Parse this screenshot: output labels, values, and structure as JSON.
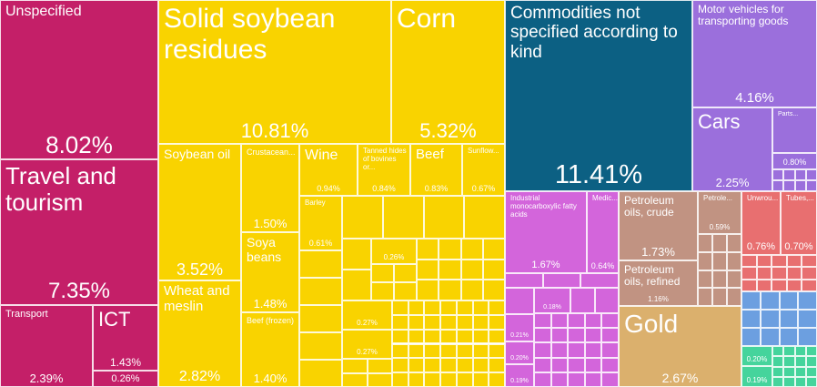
{
  "chart_data": {
    "type": "treemap",
    "unit": "% share",
    "group_colors": {
      "services": "#c41f68",
      "vegetable": "#f9d300",
      "unspecified": "#0c6083",
      "vehicles": "#9b6fdc",
      "chemicals": "#d365db",
      "minerals": "#c19382",
      "precious": "#dbb06d",
      "metals": "#e86f70",
      "blue": "#6c9fe0",
      "green": "#45d49c"
    },
    "items": [
      {
        "label": "Unspecified",
        "value": "8.02%",
        "group": "services"
      },
      {
        "label": "Travel and tourism",
        "value": "7.35%",
        "group": "services"
      },
      {
        "label": "Transport",
        "value": "2.39%",
        "group": "services"
      },
      {
        "label": "ICT",
        "value": "1.43%",
        "group": "services"
      },
      {
        "label": "",
        "value": "0.26%",
        "group": "services"
      },
      {
        "label": "Solid soybean residues",
        "value": "10.81%",
        "group": "vegetable"
      },
      {
        "label": "Corn",
        "value": "5.32%",
        "group": "vegetable"
      },
      {
        "label": "Soybean oil",
        "value": "3.52%",
        "group": "vegetable"
      },
      {
        "label": "Wheat and meslin",
        "value": "2.82%",
        "group": "vegetable"
      },
      {
        "label": "Crustacean...",
        "value": "1.50%",
        "group": "vegetable"
      },
      {
        "label": "Soya beans",
        "value": "1.48%",
        "group": "vegetable"
      },
      {
        "label": "Beef (frozen)",
        "value": "1.40%",
        "group": "vegetable"
      },
      {
        "label": "Wine",
        "value": "0.94%",
        "group": "vegetable"
      },
      {
        "label": "Tanned hides of bovines or...",
        "value": "0.84%",
        "group": "vegetable"
      },
      {
        "label": "Beef",
        "value": "0.83%",
        "group": "vegetable"
      },
      {
        "label": "Sunflow...",
        "value": "0.67%",
        "group": "vegetable"
      },
      {
        "label": "Barley",
        "value": "0.61%",
        "group": "vegetable"
      },
      {
        "label": "",
        "value": "0.26%",
        "group": "vegetable"
      },
      {
        "label": "",
        "value": "0.27%",
        "group": "vegetable"
      },
      {
        "label": "",
        "value": "0.27%",
        "group": "vegetable"
      },
      {
        "label": "Commodities not specified according to kind",
        "value": "11.41%",
        "group": "unspecified"
      },
      {
        "label": "Motor vehicles for transporting goods",
        "value": "4.16%",
        "group": "vehicles"
      },
      {
        "label": "Cars",
        "value": "2.25%",
        "group": "vehicles"
      },
      {
        "label": "Parts...",
        "value": "",
        "group": "vehicles"
      },
      {
        "label": "",
        "value": "0.80%",
        "group": "vehicles"
      },
      {
        "label": "Industrial monocarboxylic fatty acids",
        "value": "1.67%",
        "group": "chemicals"
      },
      {
        "label": "Medic...",
        "value": "0.64%",
        "group": "chemicals"
      },
      {
        "label": "",
        "value": "0.18%",
        "group": "chemicals"
      },
      {
        "label": "",
        "value": "0.21%",
        "group": "chemicals"
      },
      {
        "label": "",
        "value": "0.20%",
        "group": "chemicals"
      },
      {
        "label": "",
        "value": "0.19%",
        "group": "chemicals"
      },
      {
        "label": "Petroleum oils, crude",
        "value": "1.73%",
        "group": "minerals"
      },
      {
        "label": "Petroleum oils, refined",
        "value": "1.16%",
        "group": "minerals"
      },
      {
        "label": "Petrole...",
        "value": "0.59%",
        "group": "minerals"
      },
      {
        "label": "Gold",
        "value": "2.67%",
        "group": "precious"
      },
      {
        "label": "Unwrou...",
        "value": "0.76%",
        "group": "metals"
      },
      {
        "label": "Tubes,...",
        "value": "0.70%",
        "group": "metals"
      },
      {
        "label": "",
        "value": "0.20%",
        "group": "green"
      },
      {
        "label": "",
        "value": "0.19%",
        "group": "green"
      }
    ]
  }
}
